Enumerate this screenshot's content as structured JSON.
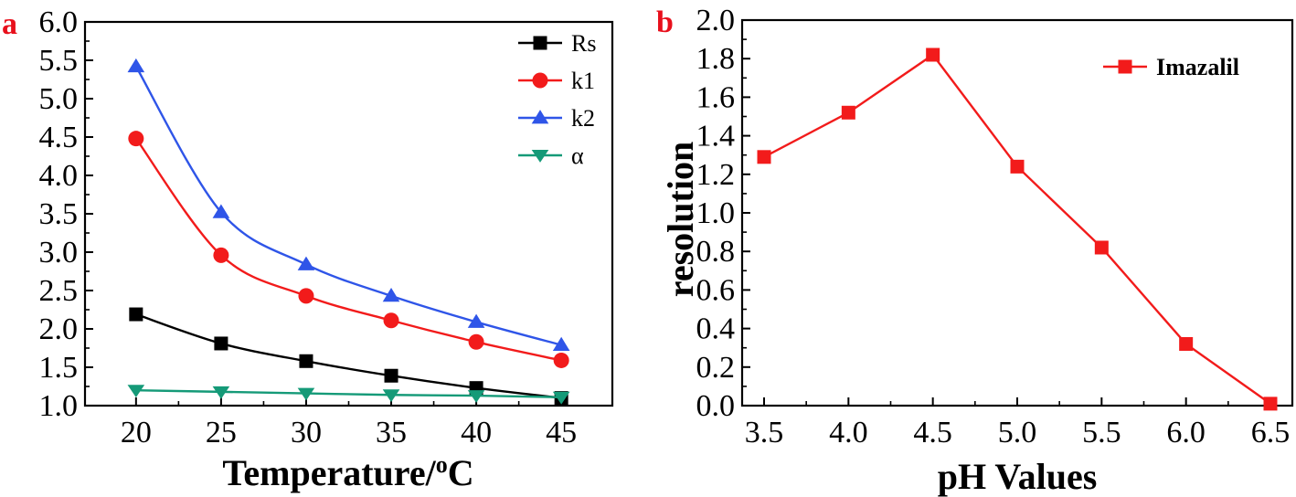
{
  "chart_data": [
    {
      "panel_label": "a",
      "type": "line",
      "xlabel": "Temperature/",
      "xlabel_sup": "o",
      "xlabel_suffix": "C",
      "ylabel": "",
      "x": [
        20,
        25,
        30,
        35,
        40,
        45
      ],
      "xticks": [
        "20",
        "25",
        "30",
        "35",
        "40",
        "45"
      ],
      "xlim": [
        17,
        48
      ],
      "ylim": [
        1.0,
        6.0
      ],
      "yticks": [
        "1.0",
        "1.5",
        "2.0",
        "2.5",
        "3.0",
        "3.5",
        "4.0",
        "4.5",
        "5.0",
        "5.5",
        "6.0"
      ],
      "legend_position": "top-right",
      "smooth": true,
      "series": [
        {
          "name": "Rs",
          "color": "#000000",
          "marker": "square",
          "values": [
            2.19,
            1.81,
            1.58,
            1.39,
            1.23,
            1.1
          ]
        },
        {
          "name": "k1",
          "color": "#f21b1b",
          "marker": "circle",
          "values": [
            4.48,
            2.96,
            2.43,
            2.11,
            1.83,
            1.59
          ]
        },
        {
          "name": "k2",
          "color": "#2f55e8",
          "marker": "triangle-up",
          "values": [
            5.42,
            3.52,
            2.84,
            2.43,
            2.09,
            1.79
          ]
        },
        {
          "name": "α",
          "color": "#159a78",
          "marker": "triangle-down",
          "values": [
            1.2,
            1.18,
            1.16,
            1.14,
            1.13,
            1.11
          ]
        }
      ]
    },
    {
      "panel_label": "b",
      "type": "line",
      "xlabel": "pH Values",
      "ylabel": "resolution",
      "x": [
        3.5,
        4.0,
        4.5,
        5.0,
        5.5,
        6.0,
        6.5
      ],
      "xticks": [
        "3.5",
        "4.0",
        "4.5",
        "5.0",
        "5.5",
        "6.0",
        "6.5"
      ],
      "xlim": [
        3.37,
        6.63
      ],
      "ylim": [
        0.0,
        2.0
      ],
      "yticks": [
        "0.0",
        "0.2",
        "0.4",
        "0.6",
        "0.8",
        "1.0",
        "1.2",
        "1.4",
        "1.6",
        "1.8",
        "2.0"
      ],
      "legend_position": "top-right",
      "smooth": false,
      "series": [
        {
          "name": "Imazalil",
          "color": "#f21b1b",
          "marker": "square",
          "values": [
            1.29,
            1.52,
            1.82,
            1.24,
            0.82,
            0.32,
            0.01
          ]
        }
      ]
    }
  ]
}
